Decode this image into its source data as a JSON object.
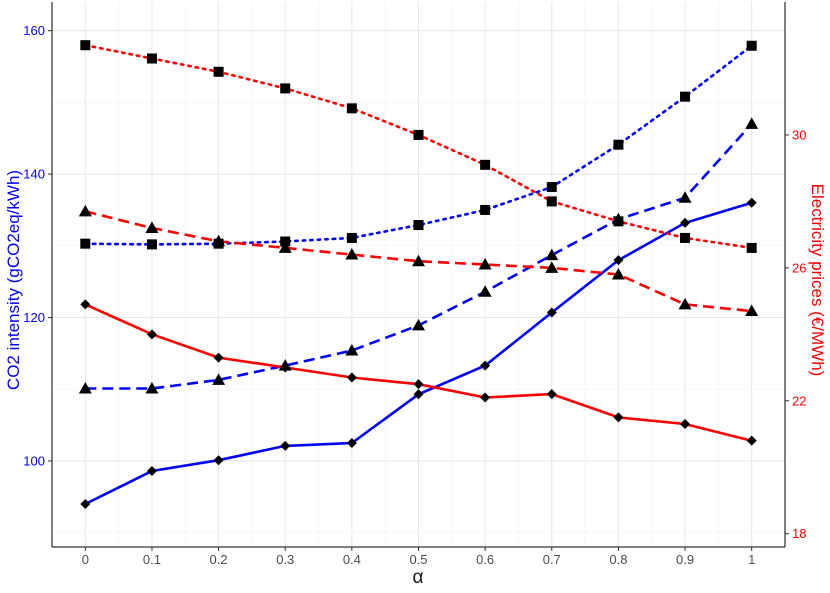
{
  "chart_data": {
    "type": "line",
    "x": [
      0,
      0.1,
      0.2,
      0.3,
      0.4,
      0.5,
      0.6,
      0.7,
      0.8,
      0.9,
      1
    ],
    "xlabel": "α",
    "x_tick_labels": [
      "0",
      "0.1",
      "0.2",
      "0.3",
      "0.4",
      "0.5",
      "0.6",
      "0.7",
      "0.8",
      "0.9",
      "1"
    ],
    "left_axis": {
      "label": "CO2 intensity (gCO2eq/kWh)",
      "color": "#0000ff",
      "range": [
        88,
        164
      ],
      "ticks": [
        100,
        120,
        140,
        160
      ],
      "tick_labels": [
        "100",
        "120",
        "140",
        "160"
      ]
    },
    "right_axis": {
      "label": "Electricity prices (€/MWh)",
      "color": "#ff0000",
      "range": [
        17.6,
        34.0
      ],
      "ticks": [
        18,
        22,
        26,
        30
      ],
      "tick_labels": [
        "18",
        "22",
        "26",
        "30"
      ]
    },
    "grid": true,
    "series": [
      {
        "axis": "left",
        "color": "#0000ff",
        "linestyle": "solid",
        "marker": "diamond",
        "values": [
          94,
          98.6,
          100.1,
          102.1,
          102.5,
          109.3,
          113.3,
          120.7,
          128.0,
          133.2,
          136.0
        ]
      },
      {
        "axis": "left",
        "color": "#0000ff",
        "linestyle": "dashed",
        "marker": "triangle",
        "values": [
          110.1,
          110.1,
          111.3,
          113.3,
          115.4,
          118.9,
          123.6,
          128.7,
          133.7,
          136.7,
          147.0
        ]
      },
      {
        "axis": "left",
        "color": "#0000ff",
        "linestyle": "dotted",
        "marker": "square",
        "values": [
          130.3,
          130.2,
          130.3,
          130.6,
          131.1,
          132.9,
          135.0,
          138.2,
          144.1,
          150.8,
          157.9
        ]
      },
      {
        "axis": "right",
        "color": "#ff0000",
        "linestyle": "solid",
        "marker": "diamond",
        "values": [
          24.9,
          24.0,
          23.3,
          23.0,
          22.7,
          22.5,
          22.1,
          22.2,
          21.5,
          21.3,
          20.8
        ]
      },
      {
        "axis": "right",
        "color": "#ff0000",
        "linestyle": "dashed",
        "marker": "triangle",
        "values": [
          27.7,
          27.2,
          26.8,
          26.6,
          26.4,
          26.2,
          26.1,
          26.0,
          25.8,
          24.9,
          24.7
        ]
      },
      {
        "axis": "right",
        "color": "#ff0000",
        "linestyle": "dotted",
        "marker": "square",
        "values": [
          32.7,
          32.3,
          31.9,
          31.4,
          30.8,
          30.0,
          29.1,
          28.0,
          27.4,
          26.9,
          26.6
        ]
      }
    ]
  }
}
